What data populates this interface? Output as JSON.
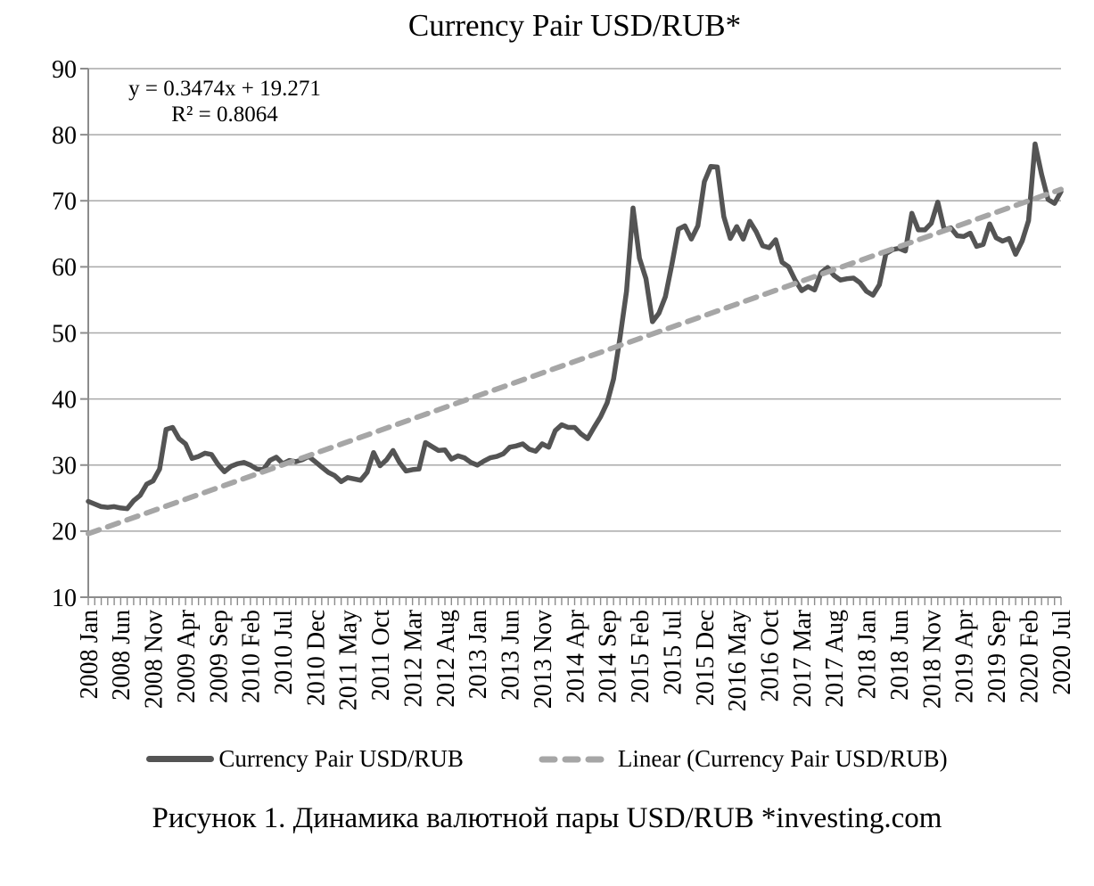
{
  "page": {
    "title": "Currency Pair USD/RUB*",
    "caption": "Рисунок 1. Динамика валютной пары USD/RUB *investing.com"
  },
  "equation": {
    "line1": "y = 0.3474x + 19.271",
    "line2": "R² = 0.8064"
  },
  "legend": {
    "series_label": "Currency Pair USD/RUB",
    "trend_label": "Linear (Currency Pair USD/RUB)"
  },
  "colors": {
    "series_line": "#545454",
    "trend_line": "#a6a6a6",
    "gridline": "#a9a9a9",
    "axis": "#8c8c8c",
    "text": "#000000",
    "background": "#ffffff"
  },
  "chart_data": {
    "type": "line",
    "title": "Currency Pair USD/RUB*",
    "xlabel": "",
    "ylabel": "",
    "x_freq": "monthly",
    "x_start": "2008 Jan",
    "x_end": "2020 Jul",
    "n_points": 151,
    "ylim": [
      10,
      90
    ],
    "y_tick_step": 10,
    "y_tick_labels": [
      "10",
      "20",
      "30",
      "40",
      "50",
      "60",
      "70",
      "80",
      "90"
    ],
    "grid": "horizontal",
    "legend_position": "bottom",
    "x_tick_every": 5,
    "x_tick_labels": [
      "2008 Jan",
      "2008 Jun",
      "2008 Nov",
      "2009 Apr",
      "2009 Sep",
      "2010 Feb",
      "2010 Jul",
      "2010 Dec",
      "2011 May",
      "2011 Oct",
      "2012 Mar",
      "2012 Aug",
      "2013 Jan",
      "2013 Jun",
      "2013 Nov",
      "2014 Apr",
      "2014 Sep",
      "2015 Feb",
      "2015 Jul",
      "2015 Dec",
      "2016 May",
      "2016 Oct",
      "2017 Mar",
      "2017 Aug",
      "2018 Jan",
      "2018 Jun",
      "2018 Nov",
      "2019 Apr",
      "2019 Sep",
      "2020 Feb",
      "2020 Jul"
    ],
    "series": [
      {
        "name": "Currency Pair USD/RUB",
        "values": [
          24.5,
          24.1,
          23.7,
          23.6,
          23.7,
          23.5,
          23.4,
          24.6,
          25.4,
          27.1,
          27.6,
          29.4,
          35.4,
          35.7,
          34.0,
          33.2,
          31.0,
          31.3,
          31.8,
          31.6,
          30.1,
          29.0,
          29.8,
          30.2,
          30.4,
          30.0,
          29.4,
          29.3,
          30.7,
          31.2,
          30.2,
          30.7,
          30.5,
          30.8,
          31.3,
          30.5,
          29.7,
          28.9,
          28.4,
          27.5,
          28.1,
          27.9,
          27.7,
          28.9,
          31.9,
          29.9,
          30.8,
          32.2,
          30.4,
          29.1,
          29.3,
          29.4,
          33.4,
          32.8,
          32.2,
          32.3,
          30.9,
          31.4,
          31.1,
          30.4,
          30.0,
          30.6,
          31.1,
          31.3,
          31.7,
          32.7,
          32.9,
          33.2,
          32.4,
          32.1,
          33.2,
          32.7,
          35.2,
          36.1,
          35.7,
          35.7,
          34.7,
          34.0,
          35.7,
          37.3,
          39.4,
          43.0,
          49.3,
          56.3,
          68.9,
          61.3,
          58.2,
          51.7,
          53.0,
          55.5,
          60.4,
          65.7,
          66.2,
          64.2,
          66.2,
          72.9,
          75.2,
          75.1,
          67.6,
          64.3,
          66.1,
          64.2,
          66.9,
          65.3,
          63.2,
          62.9,
          64.1,
          60.7,
          60.0,
          58.0,
          56.4,
          57.0,
          56.5,
          59.1,
          59.9,
          58.7,
          58.0,
          58.2,
          58.3,
          57.6,
          56.3,
          55.7,
          57.3,
          62.0,
          62.6,
          62.8,
          62.4,
          68.1,
          65.6,
          65.6,
          66.6,
          69.8,
          65.6,
          65.9,
          64.7,
          64.6,
          65.1,
          63.1,
          63.4,
          66.5,
          64.4,
          63.9,
          64.3,
          61.9,
          63.9,
          67.0,
          78.6,
          74.0,
          70.2,
          69.6,
          71.4
        ]
      }
    ],
    "trendline": {
      "name": "Linear (Currency Pair USD/RUB)",
      "equation": "y = 0.3474x + 19.271",
      "slope": 0.3474,
      "intercept": 19.271,
      "r_squared": 0.8064,
      "style": "dashed"
    }
  }
}
